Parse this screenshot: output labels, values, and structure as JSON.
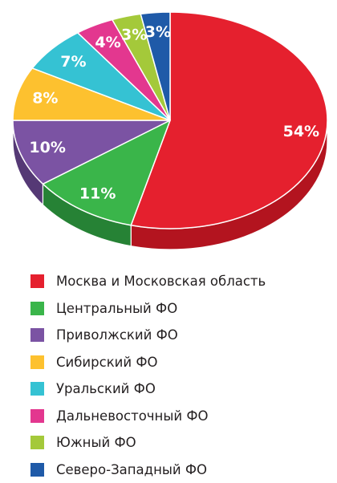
{
  "chart_data": {
    "type": "pie",
    "title": "",
    "style": "3d",
    "slices": [
      {
        "label": "Москва и Московская область",
        "value": 54,
        "value_label": "54%",
        "color": "#e5202e",
        "shade": "#b3141f"
      },
      {
        "label": "Центральный ФО",
        "value": 11,
        "value_label": "11%",
        "color": "#3ab54a",
        "shade": "#268235"
      },
      {
        "label": "Приволжский ФО",
        "value": 10,
        "value_label": "10%",
        "color": "#7b53a3",
        "shade": "#553975"
      },
      {
        "label": "Сибирский ФО",
        "value": 8,
        "value_label": "8%",
        "color": "#fdc12f",
        "shade": "#c99312"
      },
      {
        "label": "Уральский ФО",
        "value": 7,
        "value_label": "7%",
        "color": "#35c2d3",
        "shade": "#21909d"
      },
      {
        "label": "Дальневосточный ФО",
        "value": 4,
        "value_label": "4%",
        "color": "#e3378f",
        "shade": "#a82266"
      },
      {
        "label": "Южный ФО",
        "value": 3,
        "value_label": "3%",
        "color": "#a4c93a",
        "shade": "#799527"
      },
      {
        "label": "Северо-Западный ФО",
        "value": 3,
        "value_label": "3%",
        "color": "#1f5aa8",
        "shade": "#133d78"
      }
    ],
    "legend": "bottom"
  }
}
